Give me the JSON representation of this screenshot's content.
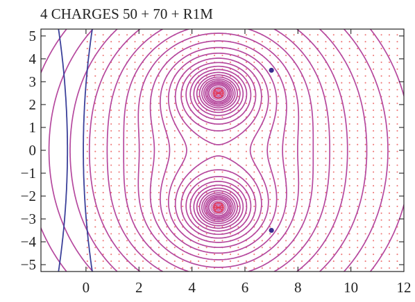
{
  "chart_data": {
    "type": "contour",
    "title": "4 CHARGES 50 + 70 + R1M",
    "xlabel": "",
    "ylabel": "",
    "xlim": [
      -1.7,
      12
    ],
    "ylim": [
      -5.3,
      5.3
    ],
    "x_ticks": [
      0,
      2,
      4,
      6,
      8,
      10,
      12
    ],
    "x_tick_labels": [
      "0",
      "2",
      "4",
      "6",
      "8",
      "10",
      "12"
    ],
    "y_ticks": [
      5,
      4,
      3,
      2,
      1,
      0,
      -1,
      -2,
      -3,
      -4,
      -5
    ],
    "y_tick_labels": [
      "5",
      "4",
      "3",
      "2",
      "1",
      "0",
      "−1",
      "−2",
      "−3",
      "−4",
      "−5"
    ],
    "grid": false,
    "charges": [
      {
        "x": 5,
        "y": 2.5,
        "role": "major"
      },
      {
        "x": 5,
        "y": -2.5,
        "role": "major"
      },
      {
        "x": 7,
        "y": 3.5,
        "role": "saddle-point"
      },
      {
        "x": 7,
        "y": -3.5,
        "role": "saddle-point"
      }
    ],
    "outer_curves_x": [
      -0.7,
      -0.1
    ],
    "colors": {
      "contour": "#b5489e",
      "near_curve": "#3a3f99",
      "dots": "#e84a4a",
      "saddle_marker": "#3a2e8f",
      "axis": "#222222"
    }
  }
}
